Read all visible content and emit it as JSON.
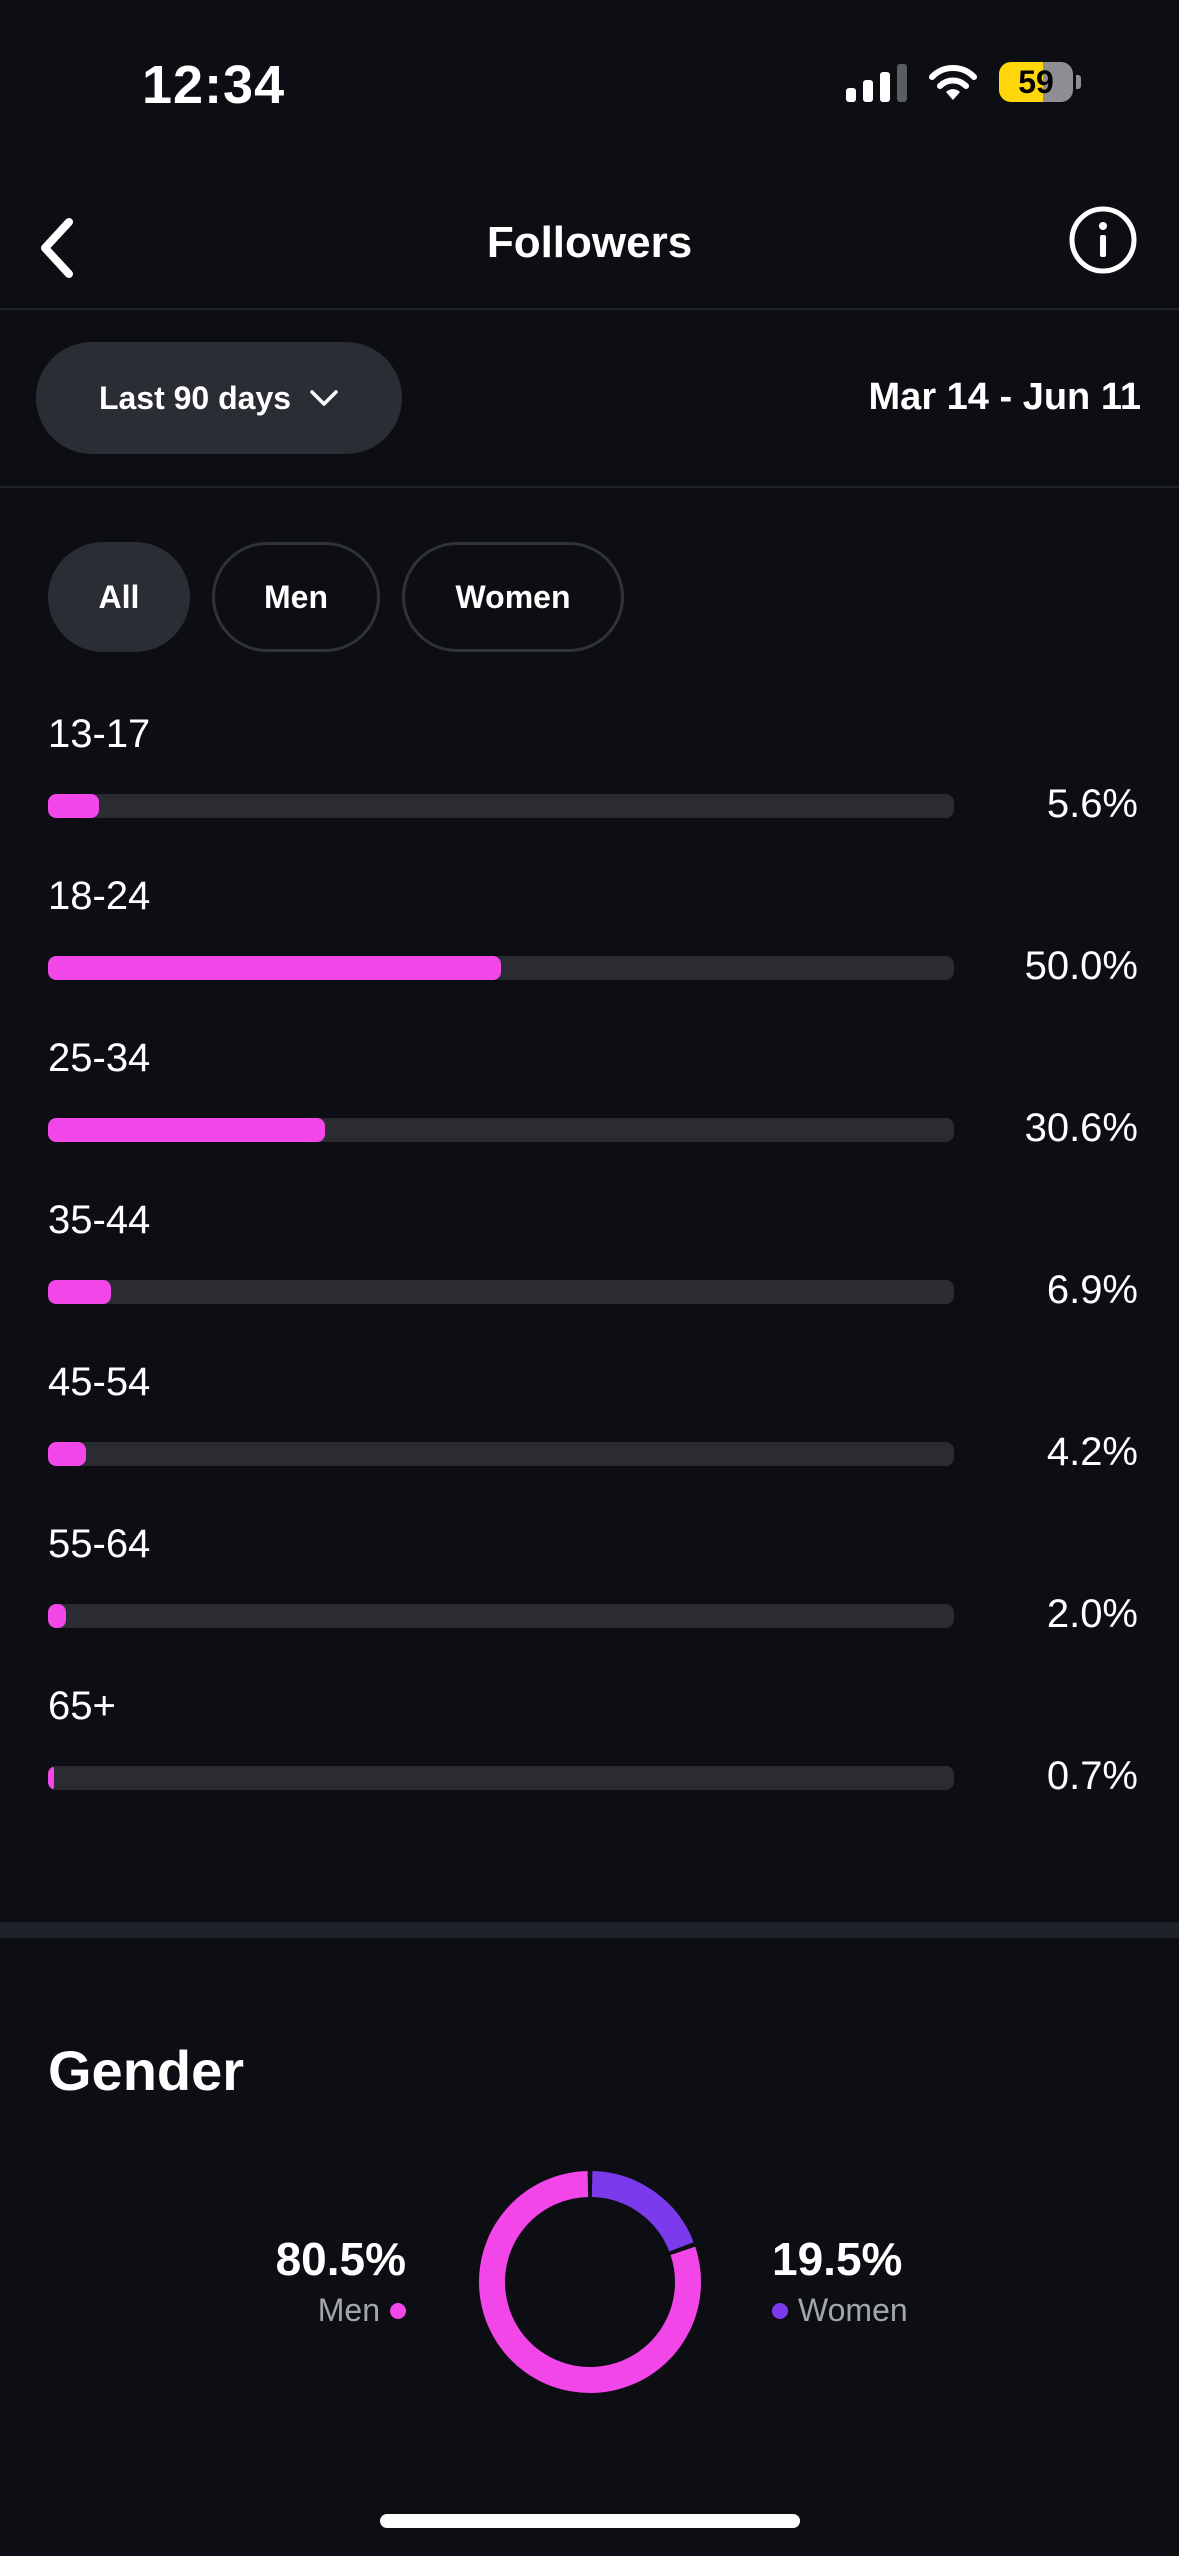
{
  "status_bar": {
    "time": "12:34",
    "battery_level": "59",
    "battery_fraction": 0.59,
    "signal_icon": "signal-icon",
    "wifi_icon": "wifi-icon"
  },
  "nav": {
    "title": "Followers",
    "back_icon": "chevron-left-icon",
    "info_icon": "info-icon"
  },
  "date_filter": {
    "range_label": "Last 90 days",
    "range_icon": "chevron-down-icon",
    "date_range": "Mar 14 - Jun 11"
  },
  "chips": [
    {
      "label": "All",
      "active": true
    },
    {
      "label": "Men",
      "active": false
    },
    {
      "label": "Women",
      "active": false
    }
  ],
  "age_chart": {
    "type": "bar",
    "categories": [
      "13-17",
      "18-24",
      "25-34",
      "35-44",
      "45-54",
      "55-64",
      "65+"
    ],
    "values": [
      5.6,
      50.0,
      30.6,
      6.9,
      4.2,
      2.0,
      0.7
    ],
    "value_labels": [
      "5.6%",
      "50.0%",
      "30.6%",
      "6.9%",
      "4.2%",
      "2.0%",
      "0.7%"
    ],
    "color": "#f346e9",
    "track_color": "#2a2c31"
  },
  "gender": {
    "title": "Gender",
    "men": {
      "label": "Men",
      "value_label": "80.5%",
      "value": 80.5,
      "color": "#f346e9"
    },
    "women": {
      "label": "Women",
      "value_label": "19.5%",
      "value": 19.5,
      "color": "#7c3aed"
    }
  },
  "chart_data": [
    {
      "type": "bar",
      "categories": [
        "13-17",
        "18-24",
        "25-34",
        "35-44",
        "45-54",
        "55-64",
        "65+"
      ],
      "values": [
        5.6,
        50.0,
        30.6,
        6.9,
        4.2,
        2.0,
        0.7
      ],
      "ylim": [
        0,
        100
      ]
    },
    {
      "type": "pie",
      "title": "Gender",
      "categories": [
        "Men",
        "Women"
      ],
      "values": [
        80.5,
        19.5
      ]
    }
  ]
}
